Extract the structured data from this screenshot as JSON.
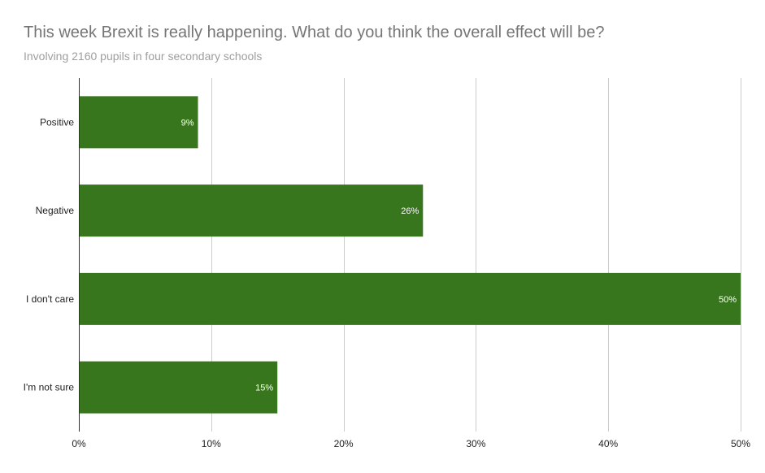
{
  "chart_data": {
    "type": "bar",
    "orientation": "horizontal",
    "title": "This week Brexit is really happening. What do you think the overall effect will be?",
    "subtitle": "Involving 2160 pupils in four secondary schools",
    "categories": [
      "Positive",
      "Negative",
      "I don't care",
      "I'm not sure"
    ],
    "values": [
      9,
      26,
      50,
      15
    ],
    "data_labels": [
      "9%",
      "26%",
      "50%",
      "15%"
    ],
    "xlim": [
      0,
      50
    ],
    "x_ticks": [
      0,
      10,
      20,
      30,
      40,
      50
    ],
    "x_tick_labels": [
      "0%",
      "10%",
      "20%",
      "30%",
      "40%",
      "50%"
    ],
    "grid": true,
    "legend": "none",
    "colors": {
      "bar": "#38761d",
      "grid": "#cccccc",
      "axis": "#333333",
      "title": "#757575",
      "subtitle": "#9e9e9e",
      "data_label": "#ffffff",
      "tick_label": "#222222"
    }
  }
}
